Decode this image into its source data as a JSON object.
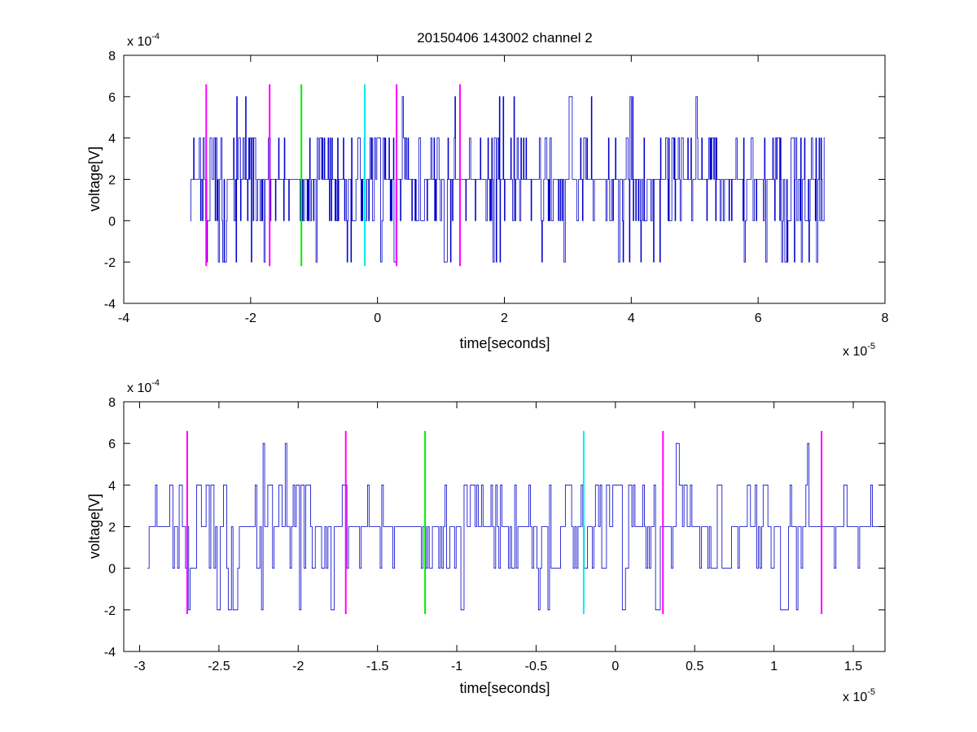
{
  "title": "20150406 143002 channel 2",
  "colors": {
    "signal": "#0000cc",
    "marker_magenta": "#ff00ff",
    "marker_green": "#00ee00",
    "marker_cyan": "#00eeee",
    "axes": "#000000"
  },
  "chart_data": [
    {
      "type": "line",
      "panel": "top",
      "title": "20150406 143002 channel 2",
      "xlabel": "time[seconds]",
      "ylabel": "voltage[V]",
      "x_exponent_label": "x 10",
      "x_exponent": "-5",
      "y_exponent_label": "x 10",
      "y_exponent": "-4",
      "xlim": [
        -4,
        8
      ],
      "ylim": [
        -4,
        8
      ],
      "xticks": [
        "-4",
        "-2",
        "0",
        "2",
        "4",
        "6",
        "8"
      ],
      "yticks": [
        "-4",
        "-2",
        "0",
        "2",
        "4",
        "6",
        "8"
      ],
      "grid": false,
      "series": [
        {
          "style": "step",
          "color": "#0000cc",
          "x_range": [
            -2.95,
            7.05
          ],
          "levels": [
            -2,
            0,
            2,
            4,
            6
          ],
          "approx_samples": 1000,
          "typical_level": 2
        }
      ],
      "markers": [
        {
          "x": -2.7,
          "color": "#ff00ff",
          "y_range": [
            -2.2,
            6.6
          ]
        },
        {
          "x": -1.7,
          "color": "#ff00ff",
          "y_range": [
            -2.2,
            6.6
          ]
        },
        {
          "x": -1.2,
          "color": "#00ee00",
          "y_range": [
            -2.2,
            6.6
          ]
        },
        {
          "x": -0.2,
          "color": "#00eeee",
          "y_range": [
            -2.2,
            6.6
          ]
        },
        {
          "x": 0.3,
          "color": "#ff00ff",
          "y_range": [
            -2.2,
            6.6
          ]
        },
        {
          "x": 1.3,
          "color": "#ff00ff",
          "y_range": [
            -2.2,
            6.6
          ]
        }
      ]
    },
    {
      "type": "line",
      "panel": "bottom",
      "xlabel": "time[seconds]",
      "ylabel": "voltage[V]",
      "x_exponent_label": "x 10",
      "x_exponent": "-5",
      "y_exponent_label": "x 10",
      "y_exponent": "-4",
      "xlim": [
        -3.1,
        1.7
      ],
      "ylim": [
        -4,
        8
      ],
      "xticks": [
        "-3",
        "-2.5",
        "-2",
        "-1.5",
        "-1",
        "-0.5",
        "0",
        "0.5",
        "1",
        "1.5"
      ],
      "xtick_values": [
        -3,
        -2.5,
        -2,
        -1.5,
        -1,
        -0.5,
        0,
        0.5,
        1,
        1.5
      ],
      "yticks": [
        "-4",
        "-2",
        "0",
        "2",
        "4",
        "6",
        "8"
      ],
      "grid": false,
      "series": [
        {
          "style": "step",
          "color": "#0000cc",
          "x_range": [
            -2.95,
            1.7
          ],
          "levels": [
            -2,
            0,
            2,
            4,
            6
          ],
          "approx_samples": 466,
          "typical_level": 2
        }
      ],
      "markers": [
        {
          "x": -2.7,
          "color": "#ff00ff",
          "y_range": [
            -2.2,
            6.6
          ]
        },
        {
          "x": -1.7,
          "color": "#ff00ff",
          "y_range": [
            -2.2,
            6.6
          ]
        },
        {
          "x": -1.2,
          "color": "#00ee00",
          "y_range": [
            -2.2,
            6.6
          ]
        },
        {
          "x": -0.2,
          "color": "#00eeee",
          "y_range": [
            -2.2,
            6.6
          ]
        },
        {
          "x": 0.3,
          "color": "#ff00ff",
          "y_range": [
            -2.2,
            6.6
          ]
        },
        {
          "x": 1.3,
          "color": "#ff00ff",
          "y_range": [
            -2.2,
            6.6
          ]
        }
      ]
    }
  ]
}
